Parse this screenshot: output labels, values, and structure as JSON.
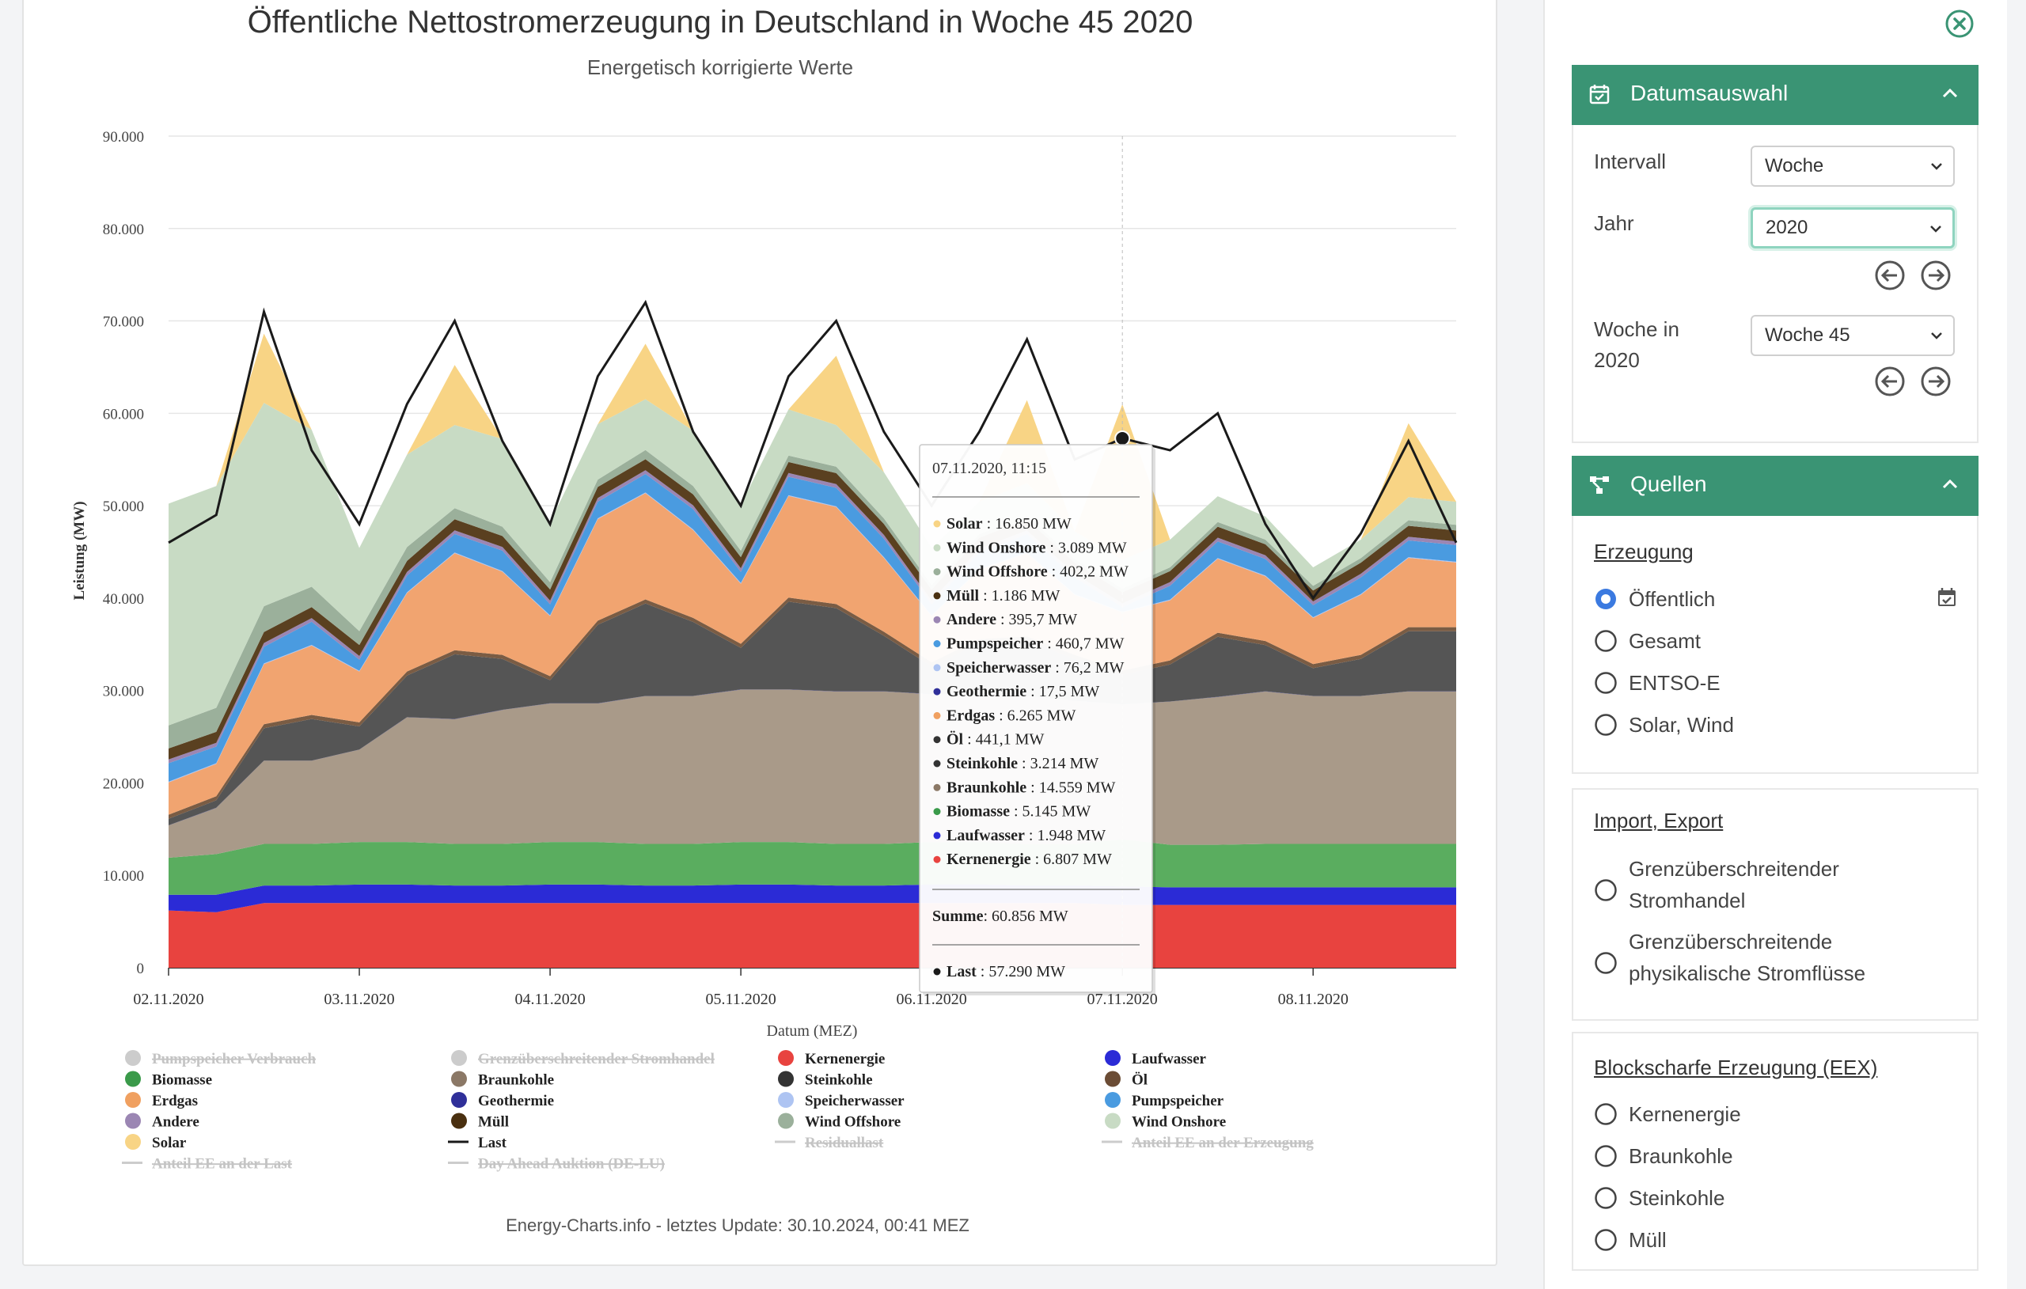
{
  "chart_data": {
    "type": "area",
    "title": "Öffentliche Nettostromerzeugung in Deutschland in Woche 45 2020",
    "subtitle": "Energetisch korrigierte Werte",
    "xlabel": "Datum (MEZ)",
    "ylabel": "Leistung (MW)",
    "ylim": [
      0,
      90000
    ],
    "yticks": [
      "0",
      "10.000",
      "20.000",
      "30.000",
      "40.000",
      "50.000",
      "60.000",
      "70.000",
      "80.000",
      "90.000"
    ],
    "xticks": [
      "02.11.2020",
      "03.11.2020",
      "04.11.2020",
      "05.11.2020",
      "06.11.2020",
      "07.11.2020",
      "08.11.2020"
    ],
    "grid": true,
    "stacked": true,
    "x_start": "02.11.2020, 00:00",
    "x_step": "6 h",
    "series": [
      {
        "name": "Kernenergie",
        "color": "#e8433f",
        "values": [
          6200,
          6000,
          7000,
          7000,
          7000,
          7000,
          7000,
          7000,
          7000,
          7000,
          7000,
          7000,
          7000,
          7000,
          7000,
          7000,
          7000,
          7000,
          7000,
          7000,
          6800,
          6800,
          6800,
          6800,
          6800,
          6800,
          6800,
          6800
        ]
      },
      {
        "name": "Laufwasser",
        "color": "#2b2bd6",
        "values": [
          1700,
          1900,
          1900,
          1900,
          2000,
          2000,
          1900,
          1900,
          2000,
          2000,
          1900,
          1900,
          2000,
          2000,
          1900,
          1900,
          2000,
          2000,
          1900,
          1900,
          2000,
          1900,
          1900,
          1900,
          1900,
          1900,
          1900,
          1900
        ]
      },
      {
        "name": "Biomasse",
        "color": "#5aad5f",
        "values": [
          4000,
          4400,
          4500,
          4500,
          4600,
          4600,
          4500,
          4500,
          4600,
          4600,
          4500,
          4500,
          4600,
          4600,
          4500,
          4500,
          4600,
          4600,
          4500,
          4500,
          5100,
          4600,
          4600,
          4700,
          4700,
          4700,
          4700,
          4700
        ]
      },
      {
        "name": "Braunkohle",
        "color": "#a99a89",
        "values": [
          3500,
          5000,
          9000,
          9000,
          10000,
          13500,
          13500,
          14500,
          15000,
          15000,
          16000,
          16000,
          16500,
          16500,
          16500,
          16500,
          16000,
          16000,
          16000,
          15500,
          14600,
          15500,
          16000,
          16500,
          16000,
          16000,
          16500,
          16500
        ]
      },
      {
        "name": "Geothermie",
        "color": "#2f2f99",
        "values": [
          18,
          18,
          18,
          18,
          18,
          18,
          18,
          18,
          18,
          18,
          18,
          18,
          18,
          18,
          18,
          18,
          18,
          18,
          18,
          18,
          18,
          18,
          18,
          18,
          18,
          18,
          18,
          18
        ]
      },
      {
        "name": "Steinkohle",
        "color": "#555555",
        "values": [
          700,
          800,
          3500,
          4500,
          2500,
          4500,
          7000,
          5500,
          2500,
          8500,
          10000,
          8000,
          4500,
          9500,
          9000,
          6000,
          3000,
          5500,
          6000,
          4500,
          3200,
          4000,
          6500,
          5000,
          3000,
          4000,
          6500,
          6500
        ]
      },
      {
        "name": "Öl",
        "color": "#7a5c44",
        "values": [
          440,
          440,
          440,
          440,
          440,
          440,
          440,
          440,
          440,
          440,
          440,
          440,
          440,
          440,
          440,
          440,
          440,
          440,
          440,
          440,
          440,
          440,
          440,
          440,
          440,
          440,
          440,
          440
        ]
      },
      {
        "name": "Erdgas",
        "color": "#f1a470",
        "values": [
          3500,
          3500,
          6500,
          7500,
          5500,
          8500,
          10500,
          9000,
          6500,
          11000,
          11500,
          9500,
          6500,
          11000,
          10500,
          8000,
          5000,
          7500,
          9000,
          6500,
          6300,
          6500,
          8000,
          7000,
          5000,
          6500,
          7500,
          7000
        ]
      },
      {
        "name": "Speicherwasser",
        "color": "#aec4f2",
        "values": [
          80,
          80,
          80,
          80,
          80,
          80,
          80,
          80,
          80,
          80,
          80,
          80,
          80,
          80,
          80,
          80,
          80,
          80,
          80,
          80,
          80,
          80,
          80,
          80,
          80,
          80,
          80,
          80
        ]
      },
      {
        "name": "Pumpspeicher",
        "color": "#4a9be0",
        "values": [
          2000,
          1800,
          1800,
          2500,
          1200,
          1800,
          2000,
          2200,
          1200,
          1800,
          2000,
          2200,
          1200,
          2000,
          2000,
          2000,
          1200,
          1800,
          2000,
          1800,
          500,
          1500,
          1800,
          1800,
          1300,
          1800,
          1800,
          1800
        ]
      },
      {
        "name": "Andere",
        "color": "#9b86b3",
        "values": [
          400,
          400,
          400,
          400,
          400,
          400,
          400,
          400,
          400,
          400,
          400,
          400,
          400,
          400,
          400,
          400,
          400,
          400,
          400,
          400,
          400,
          400,
          400,
          400,
          400,
          400,
          400,
          400
        ]
      },
      {
        "name": "Müll",
        "color": "#5a4020",
        "values": [
          1190,
          1190,
          1190,
          1190,
          1190,
          1190,
          1190,
          1190,
          1190,
          1190,
          1190,
          1190,
          1190,
          1190,
          1190,
          1190,
          1190,
          1190,
          1190,
          1190,
          1190,
          1190,
          1190,
          1190,
          1190,
          1190,
          1190,
          1190
        ]
      },
      {
        "name": "Wind Offshore",
        "color": "#9bb09b",
        "values": [
          2500,
          2600,
          2800,
          2200,
          1500,
          1500,
          1200,
          1000,
          800,
          800,
          1000,
          900,
          700,
          700,
          700,
          600,
          500,
          400,
          400,
          400,
          400,
          400,
          500,
          500,
          500,
          500,
          600,
          600
        ]
      },
      {
        "name": "Wind Onshore",
        "color": "#c8dbc4",
        "values": [
          24000,
          24000,
          22000,
          17000,
          9000,
          10000,
          9000,
          9500,
          6500,
          6000,
          5500,
          6000,
          5000,
          5000,
          4500,
          5000,
          4000,
          3500,
          3500,
          3000,
          3100,
          3000,
          2800,
          2500,
          2000,
          2000,
          2500,
          2500
        ]
      },
      {
        "name": "Solar",
        "color": "#f8d485",
        "values": [
          0,
          0,
          7500,
          0,
          0,
          0,
          6500,
          0,
          0,
          0,
          6000,
          0,
          0,
          0,
          7500,
          0,
          0,
          0,
          9000,
          0,
          16850,
          0,
          0,
          0,
          0,
          0,
          8000,
          0
        ]
      }
    ],
    "last_series": {
      "name": "Last",
      "color": "#1a1a1a",
      "values": [
        46000,
        49000,
        71000,
        56000,
        48000,
        61000,
        70000,
        57000,
        48000,
        64000,
        72000,
        58000,
        50000,
        64000,
        70000,
        58000,
        50000,
        58000,
        68000,
        55000,
        57290,
        56000,
        60000,
        48000,
        40000,
        47000,
        57000,
        46000
      ]
    },
    "legend": [
      {
        "label": "Pumpspeicher Verbrauch",
        "color": "#cccccc",
        "shape": "dot",
        "hidden": true
      },
      {
        "label": "Grenzüberschreitender Stromhandel",
        "color": "#cccccc",
        "shape": "dot",
        "hidden": true
      },
      {
        "label": "Kernenergie",
        "color": "#e8433f",
        "shape": "dot",
        "hidden": false
      },
      {
        "label": "Laufwasser",
        "color": "#2b2bd6",
        "shape": "dot",
        "hidden": false
      },
      {
        "label": "Biomasse",
        "color": "#3a9a4a",
        "shape": "dot",
        "hidden": false
      },
      {
        "label": "Braunkohle",
        "color": "#8b7866",
        "shape": "dot",
        "hidden": false
      },
      {
        "label": "Steinkohle",
        "color": "#333333",
        "shape": "dot",
        "hidden": false
      },
      {
        "label": "Öl",
        "color": "#6b4c35",
        "shape": "dot",
        "hidden": false
      },
      {
        "label": "Erdgas",
        "color": "#f0a060",
        "shape": "dot",
        "hidden": false
      },
      {
        "label": "Geothermie",
        "color": "#2f2f99",
        "shape": "dot",
        "hidden": false
      },
      {
        "label": "Speicherwasser",
        "color": "#aec4f2",
        "shape": "dot",
        "hidden": false
      },
      {
        "label": "Pumpspeicher",
        "color": "#4a9be0",
        "shape": "dot",
        "hidden": false
      },
      {
        "label": "Andere",
        "color": "#9b86b3",
        "shape": "dot",
        "hidden": false
      },
      {
        "label": "Müll",
        "color": "#4a3010",
        "shape": "dot",
        "hidden": false
      },
      {
        "label": "Wind Offshore",
        "color": "#9bb09b",
        "shape": "dot",
        "hidden": false
      },
      {
        "label": "Wind Onshore",
        "color": "#c8dbc4",
        "shape": "dot",
        "hidden": false
      },
      {
        "label": "Solar",
        "color": "#f8d485",
        "shape": "dot",
        "hidden": false
      },
      {
        "label": "Last",
        "color": "#1a1a1a",
        "shape": "line",
        "hidden": false
      },
      {
        "label": "Residuallast",
        "color": "#cccccc",
        "shape": "line",
        "hidden": true
      },
      {
        "label": "Anteil EE an der Erzeugung",
        "color": "#cccccc",
        "shape": "line",
        "hidden": true
      },
      {
        "label": "Anteil EE an der Last",
        "color": "#cccccc",
        "shape": "line",
        "hidden": true
      },
      {
        "label": "Day Ahead Auktion (DE-LU)",
        "color": "#cccccc",
        "shape": "line",
        "hidden": true
      }
    ],
    "legend_placement": "bottom",
    "tooltip": {
      "title": "07.11.2020, 11:15",
      "rows": [
        {
          "label": "Solar",
          "value": ": 16.850 MW",
          "color": "#f8d485"
        },
        {
          "label": "Wind Onshore",
          "value": ": 3.089 MW",
          "color": "#c8dbc4"
        },
        {
          "label": "Wind Offshore",
          "value": ": 402,2 MW",
          "color": "#9bb09b"
        },
        {
          "label": "Müll",
          "value": ": 1.186 MW",
          "color": "#4a3010"
        },
        {
          "label": "Andere",
          "value": ": 395,7 MW",
          "color": "#9b86b3"
        },
        {
          "label": "Pumpspeicher",
          "value": ": 460,7 MW",
          "color": "#4a9be0"
        },
        {
          "label": "Speicherwasser",
          "value": ": 76,2 MW",
          "color": "#aec4f2"
        },
        {
          "label": "Geothermie",
          "value": ": 17,5 MW",
          "color": "#2f2f99"
        },
        {
          "label": "Erdgas",
          "value": ": 6.265 MW",
          "color": "#f0a060"
        },
        {
          "label": "Öl",
          "value": ": 441,1 MW",
          "color": "#333333"
        },
        {
          "label": "Steinkohle",
          "value": ": 3.214 MW",
          "color": "#333333"
        },
        {
          "label": "Braunkohle",
          "value": ": 14.559 MW",
          "color": "#8b7866"
        },
        {
          "label": "Biomasse",
          "value": ": 5.145 MW",
          "color": "#3a9a4a"
        },
        {
          "label": "Laufwasser",
          "value": ": 1.948 MW",
          "color": "#2b2bd6"
        },
        {
          "label": "Kernenergie",
          "value": ": 6.807 MW",
          "color": "#e8433f"
        }
      ],
      "sum_label": "Summe",
      "sum_value": ": 60.856 MW",
      "last_label": "Last",
      "last_value": ": 57.290 MW"
    }
  },
  "footer": {
    "credit": "Energy-Charts.info - letztes Update: 30.10.2024, 00:41 MEZ"
  },
  "sidebar": {
    "datumsauswahl": {
      "title": "Datumsauswahl",
      "intervall_label": "Intervall",
      "intervall_value": "Woche",
      "jahr_label": "Jahr",
      "jahr_value": "2020",
      "woche_label_line1": "Woche in",
      "woche_label_line2": "2020",
      "woche_value": "Woche 45"
    },
    "quellen": {
      "title": "Quellen",
      "erzeugung_title": "Erzeugung",
      "erzeugung_options": [
        "Öffentlich",
        "Gesamt",
        "ENTSO-E",
        "Solar, Wind"
      ],
      "selected": "Öffentlich",
      "import_title": "Import, Export",
      "import_options": [
        {
          "line1": "Grenzüberschreitender",
          "line2": "Stromhandel"
        },
        {
          "line1": "Grenzüberschreitende",
          "line2": "physikalische Stromflüsse"
        }
      ],
      "block_title": "Blockscharfe Erzeugung (EEX)",
      "block_options": [
        "Kernenergie",
        "Braunkohle",
        "Steinkohle",
        "Müll"
      ]
    },
    "accent_color": "#3a9474"
  }
}
